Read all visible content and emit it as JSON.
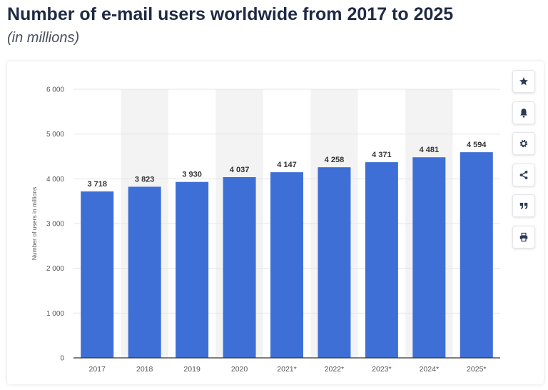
{
  "header": {
    "title": "Number of e-mail users worldwide from 2017 to 2025",
    "subtitle": "(in millions)"
  },
  "toolbar": {
    "icons": [
      "star-icon",
      "bell-icon",
      "gear-icon",
      "share-icon",
      "quote-icon",
      "print-icon"
    ]
  },
  "colors": {
    "bar": "#3d6fd6",
    "bar_label": "#333333",
    "axis_text": "#555555",
    "grid": "#e5e5e5",
    "band": "#f3f3f3",
    "icon": "#2b3a55"
  },
  "chart_data": {
    "type": "bar",
    "categories": [
      "2017",
      "2018",
      "2019",
      "2020",
      "2021*",
      "2022*",
      "2023*",
      "2024*",
      "2025*"
    ],
    "values": [
      3718,
      3823,
      3930,
      4037,
      4147,
      4258,
      4371,
      4481,
      4594
    ],
    "value_labels": [
      "3 718",
      "3 823",
      "3 930",
      "4 037",
      "4 147",
      "4 258",
      "4 371",
      "4 481",
      "4 594"
    ],
    "ylabel": "Number of users in millions",
    "xlabel": "",
    "ylim": [
      0,
      6000
    ],
    "yticks": [
      0,
      1000,
      2000,
      3000,
      4000,
      5000,
      6000
    ],
    "ytick_labels": [
      "0",
      "1 000",
      "2 000",
      "3 000",
      "4 000",
      "5 000",
      "6 000"
    ],
    "grid": true,
    "legend": "none"
  }
}
